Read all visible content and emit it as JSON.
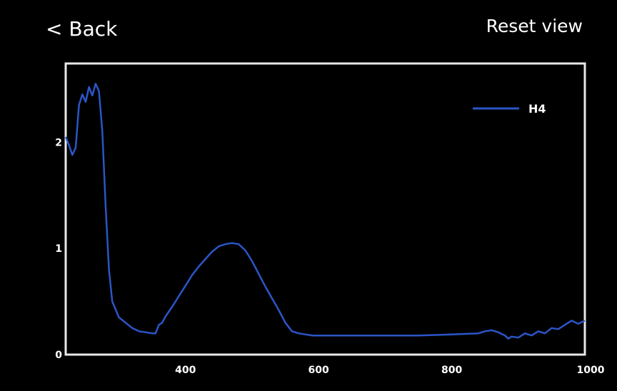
{
  "header": {
    "back_label": "< Back",
    "reset_label": "Reset view"
  },
  "chart_data": {
    "type": "line",
    "title": "",
    "xlabel": "",
    "ylabel": "",
    "xlim": [
      220,
      1000
    ],
    "ylim": [
      0,
      2.6
    ],
    "xticks": [
      400,
      600,
      800,
      1000
    ],
    "yticks": [
      0,
      1,
      2
    ],
    "grid": false,
    "legend": "top-right",
    "series": [
      {
        "name": "H4",
        "color": "#2b56c8",
        "x": [
          220,
          225,
          230,
          235,
          240,
          245,
          250,
          255,
          260,
          265,
          270,
          275,
          280,
          285,
          290,
          300,
          310,
          320,
          330,
          340,
          350,
          355,
          360,
          365,
          370,
          380,
          390,
          400,
          410,
          420,
          430,
          440,
          450,
          460,
          470,
          480,
          490,
          500,
          510,
          520,
          530,
          540,
          550,
          560,
          570,
          580,
          590,
          600,
          650,
          700,
          750,
          800,
          840,
          850,
          860,
          870,
          880,
          885,
          890,
          900,
          910,
          920,
          930,
          940,
          950,
          960,
          970,
          980,
          990,
          1000
        ],
        "y": [
          2.05,
          1.97,
          1.88,
          1.95,
          2.35,
          2.45,
          2.38,
          2.52,
          2.44,
          2.55,
          2.48,
          2.1,
          1.4,
          0.8,
          0.5,
          0.35,
          0.3,
          0.25,
          0.22,
          0.21,
          0.2,
          0.2,
          0.28,
          0.3,
          0.36,
          0.45,
          0.55,
          0.65,
          0.75,
          0.83,
          0.9,
          0.97,
          1.02,
          1.04,
          1.05,
          1.04,
          0.98,
          0.88,
          0.76,
          0.64,
          0.53,
          0.42,
          0.3,
          0.22,
          0.2,
          0.19,
          0.18,
          0.18,
          0.18,
          0.18,
          0.18,
          0.19,
          0.2,
          0.22,
          0.23,
          0.21,
          0.18,
          0.15,
          0.17,
          0.16,
          0.2,
          0.18,
          0.22,
          0.2,
          0.25,
          0.24,
          0.28,
          0.32,
          0.29,
          0.32
        ]
      }
    ]
  }
}
